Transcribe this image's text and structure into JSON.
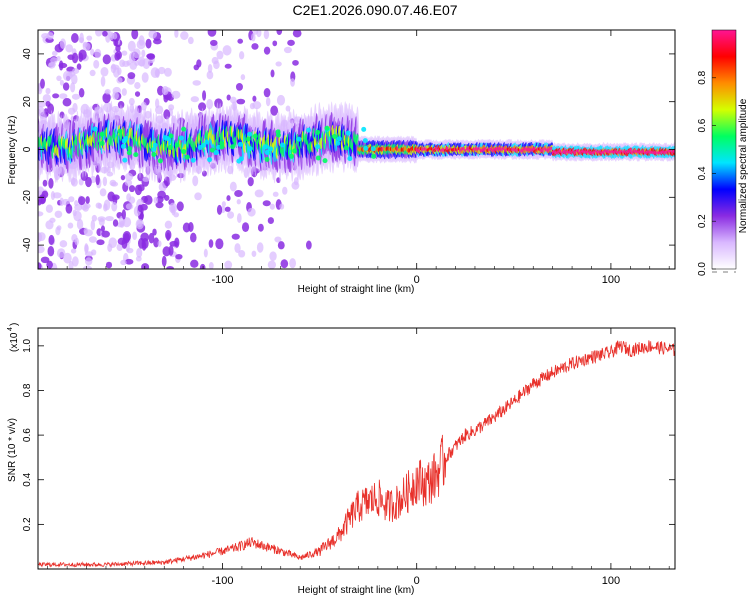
{
  "title": "C2E1.2026.090.07.46.E07",
  "chart_data": [
    {
      "type": "heatmap",
      "name": "spectrogram",
      "xlabel": "Height of straight line (km)",
      "ylabel": "Frequency (Hz)",
      "xlim": [
        -195,
        133
      ],
      "ylim": [
        -50,
        50
      ],
      "xticks": [
        -100,
        0,
        100
      ],
      "xtick_labels": [
        "-100",
        "0",
        "100"
      ],
      "yticks": [
        -40,
        -20,
        0,
        20,
        40
      ],
      "ytick_labels": [
        "-40",
        "-20",
        "0",
        "20",
        "40"
      ],
      "colorbar": {
        "label": "Normalized spectral amplitude",
        "range": [
          0,
          1
        ],
        "ticks": [
          0.0,
          0.2,
          0.4,
          0.6,
          0.8
        ],
        "tick_labels": [
          "0.0",
          "0.2",
          "0.4",
          "0.6",
          "0.8"
        ],
        "colormap": [
          "#ffffff",
          "#d9b8ff",
          "#8a2be2",
          "#0000ff",
          "#00e5ff",
          "#00ff60",
          "#d4ff00",
          "#ff8c00",
          "#ff0000",
          "#ff1493"
        ]
      }
    },
    {
      "type": "line",
      "name": "snr",
      "xlabel": "Height of straight line (km)",
      "ylabel": "SNR (10 * v/v)",
      "multiplier_label": "(x10",
      "multiplier_exp": "4",
      "xlim": [
        -195,
        133
      ],
      "ylim": [
        0,
        1.08
      ],
      "xticks": [
        -100,
        0,
        100
      ],
      "xtick_labels": [
        "-100",
        "0",
        "100"
      ],
      "yticks": [
        0.2,
        0.4,
        0.6,
        0.8,
        1.0
      ],
      "ytick_labels": [
        "0.2",
        "0.4",
        "0.6",
        "0.8",
        "1.0"
      ],
      "color": "#e8302a",
      "series": [
        {
          "name": "SNR",
          "x": [
            -195,
            -160,
            -130,
            -110,
            -95,
            -85,
            -70,
            -60,
            -50,
            -40,
            -35,
            -30,
            -25,
            -20,
            -15,
            -10,
            -5,
            0,
            5,
            10,
            15,
            20,
            25,
            30,
            40,
            50,
            60,
            70,
            80,
            90,
            100,
            105,
            110,
            120,
            133
          ],
          "y": [
            0.02,
            0.02,
            0.03,
            0.06,
            0.09,
            0.12,
            0.08,
            0.05,
            0.08,
            0.15,
            0.22,
            0.28,
            0.3,
            0.32,
            0.28,
            0.3,
            0.34,
            0.4,
            0.38,
            0.42,
            0.5,
            0.55,
            0.6,
            0.62,
            0.68,
            0.75,
            0.83,
            0.88,
            0.92,
            0.95,
            0.97,
            1.0,
            0.98,
            1.0,
            0.98
          ]
        }
      ]
    }
  ]
}
